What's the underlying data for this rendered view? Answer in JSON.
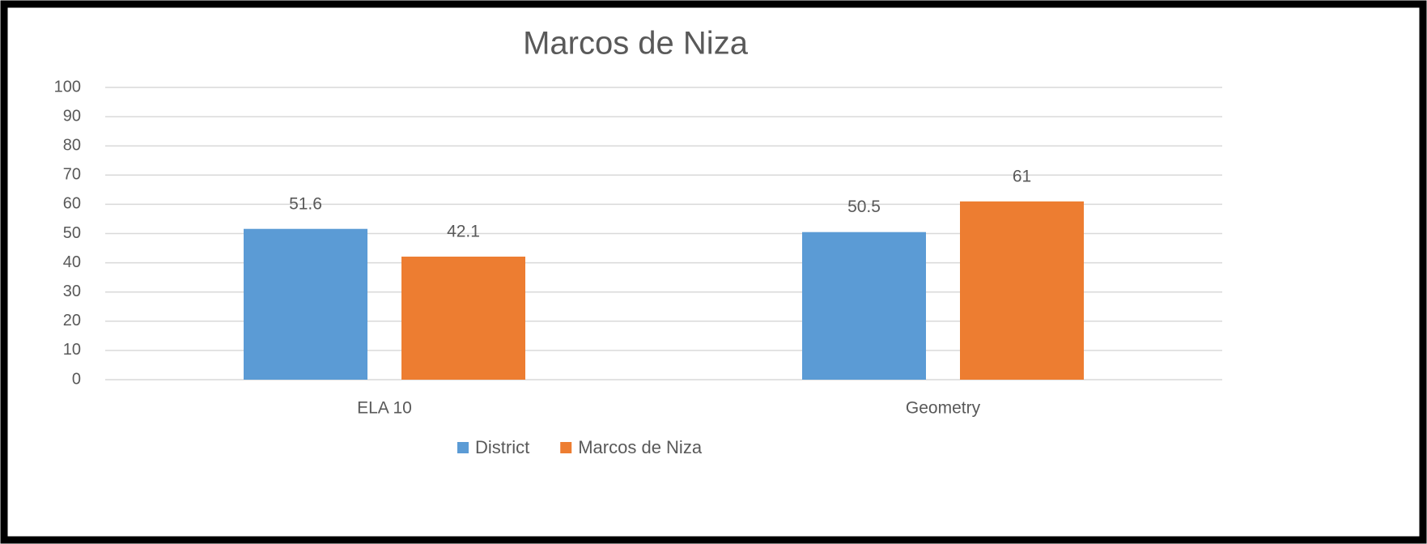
{
  "chart_data": {
    "type": "bar",
    "title": "Marcos de Niza",
    "categories": [
      "ELA 10",
      "Geometry"
    ],
    "series": [
      {
        "name": "District",
        "color": "#5b9bd5",
        "values": [
          51.6,
          50.5
        ]
      },
      {
        "name": "Marcos de Niza",
        "color": "#ed7d31",
        "values": [
          42.1,
          61
        ]
      }
    ],
    "ylim": [
      0,
      100
    ],
    "yticks": [
      0,
      10,
      20,
      30,
      40,
      50,
      60,
      70,
      80,
      90,
      100
    ],
    "grid": true,
    "legend": "bottom"
  }
}
